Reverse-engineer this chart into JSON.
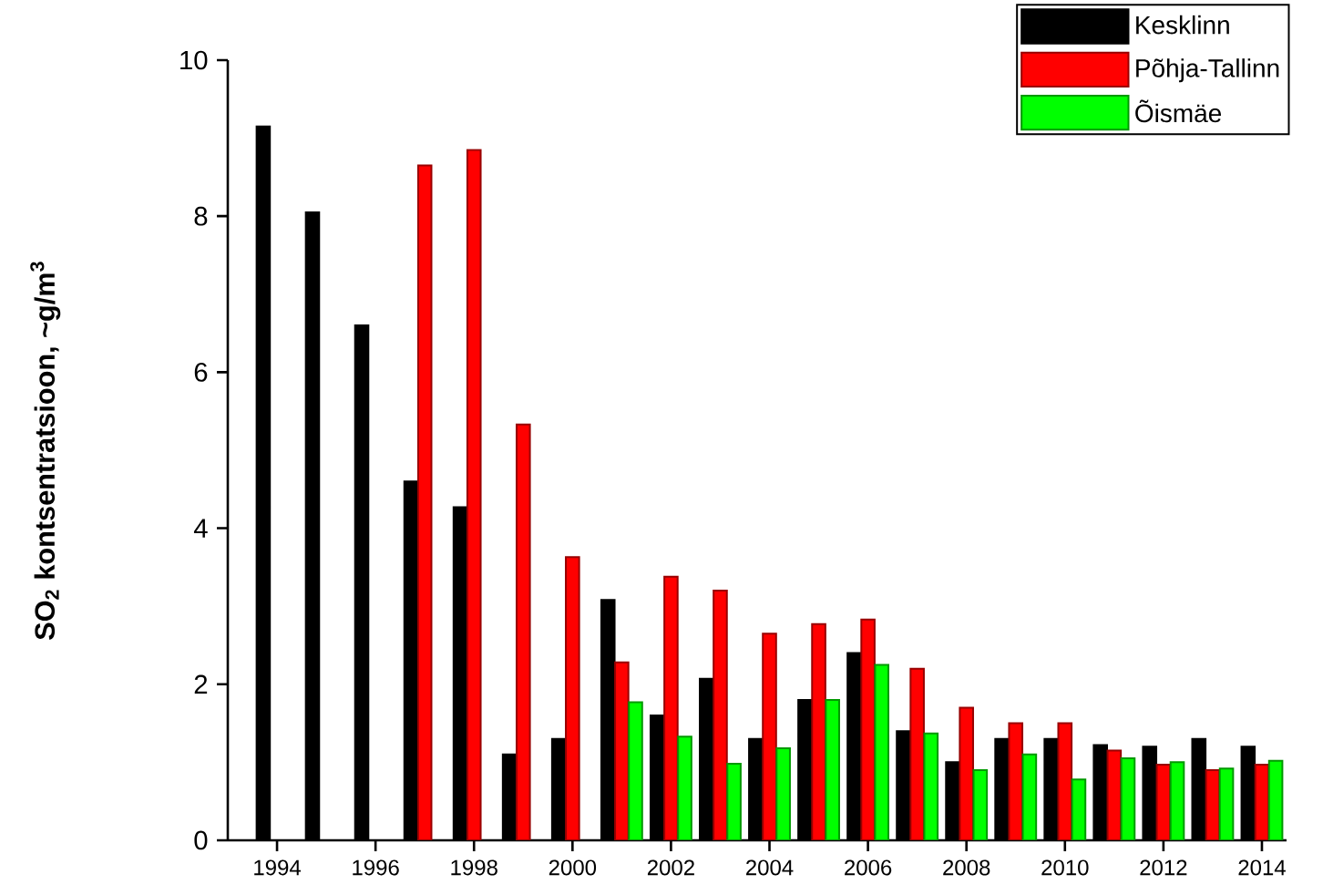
{
  "chart_data": {
    "type": "bar",
    "ylabel": "SO$_{2}$ kontsentratsioon, ~g/m$^{3}$",
    "x": [
      1994,
      1995,
      1996,
      1997,
      1998,
      1999,
      2000,
      2001,
      2002,
      2003,
      2004,
      2005,
      2006,
      2007,
      2008,
      2009,
      2010,
      2011,
      2012,
      2013,
      2014
    ],
    "series": [
      {
        "name": "Kesklinn",
        "color": "#000000",
        "values": [
          9.15,
          8.05,
          6.6,
          4.6,
          4.27,
          1.1,
          1.3,
          3.08,
          1.6,
          2.07,
          1.3,
          1.8,
          2.4,
          1.4,
          1.0,
          1.3,
          1.3,
          1.22,
          1.2,
          1.3,
          1.2
        ]
      },
      {
        "name": "Põhja-Tallinn",
        "color": "#ff0000",
        "values": [
          null,
          null,
          null,
          8.65,
          8.85,
          5.33,
          3.63,
          2.28,
          3.38,
          3.2,
          2.65,
          2.77,
          2.83,
          2.2,
          1.7,
          1.5,
          1.5,
          1.15,
          0.97,
          0.9,
          0.97
        ]
      },
      {
        "name": "Õismäe",
        "color": "#00ff00",
        "values": [
          null,
          null,
          null,
          null,
          null,
          null,
          null,
          1.77,
          1.33,
          0.98,
          1.18,
          1.8,
          2.25,
          1.37,
          0.9,
          1.1,
          0.78,
          1.05,
          1.0,
          0.92,
          1.02
        ]
      }
    ],
    "xlim": [
      1993,
      2014.5
    ],
    "ylim": [
      0,
      10
    ],
    "xticks": [
      1994,
      1996,
      1998,
      2000,
      2002,
      2004,
      2006,
      2008,
      2010,
      2012,
      2014
    ],
    "yticks": [
      0,
      2,
      4,
      6,
      8,
      10
    ],
    "legend": "top right"
  }
}
